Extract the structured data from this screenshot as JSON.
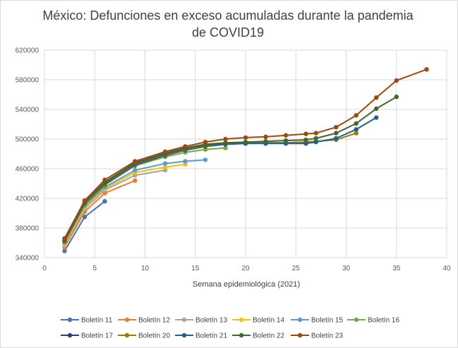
{
  "chart_data": {
    "type": "line",
    "title_line1": "México: Defunciones en exceso acumuladas durante la pandemia",
    "title_line2": "de COVID19",
    "xlabel": "Semana epidemiológica (2021)",
    "ylabel": "",
    "xlim": [
      0,
      40
    ],
    "ylim": [
      340000,
      620000
    ],
    "xticks": [
      0,
      5,
      10,
      15,
      20,
      25,
      30,
      35,
      40
    ],
    "yticks": [
      340000,
      380000,
      420000,
      460000,
      500000,
      540000,
      580000,
      620000
    ],
    "grid": true,
    "legend_position": "bottom",
    "series": [
      {
        "name": "Boletín 11",
        "color": "#4472C4",
        "x": [
          2,
          4,
          6
        ],
        "y": [
          349000,
          395000,
          416000
        ]
      },
      {
        "name": "Boletín 12",
        "color": "#ED7D31",
        "x": [
          2,
          4,
          6,
          9
        ],
        "y": [
          354000,
          402000,
          427000,
          444000
        ]
      },
      {
        "name": "Boletín 13",
        "color": "#A5A5A5",
        "x": [
          2,
          4,
          6,
          9,
          12
        ],
        "y": [
          357000,
          406000,
          431000,
          451000,
          458000
        ]
      },
      {
        "name": "Boletín 14",
        "color": "#FFC000",
        "x": [
          2,
          4,
          6,
          9,
          12,
          14
        ],
        "y": [
          358000,
          408000,
          433000,
          455000,
          462000,
          466000
        ]
      },
      {
        "name": "Boletín 15",
        "color": "#5B9BD5",
        "x": [
          2,
          4,
          6,
          9,
          12,
          14,
          16
        ],
        "y": [
          360000,
          410000,
          435000,
          458000,
          467000,
          470000,
          472000
        ]
      },
      {
        "name": "Boletín 16",
        "color": "#70AD47",
        "x": [
          2,
          4,
          6,
          9,
          12,
          14,
          16,
          18
        ],
        "y": [
          361000,
          412000,
          438000,
          464000,
          476000,
          482000,
          486000,
          488000
        ]
      },
      {
        "name": "Boletín 17",
        "color": "#264478",
        "x": [
          2,
          4,
          6,
          9,
          12,
          14,
          16,
          18,
          20,
          22,
          24,
          26,
          27
        ],
        "y": [
          362000,
          413000,
          439000,
          465000,
          478000,
          485000,
          490000,
          493000,
          494000,
          495000,
          495000,
          496000,
          497000
        ]
      },
      {
        "name": "Boletín 20",
        "color": "#9E7A00",
        "x": [
          2,
          4,
          6,
          9,
          12,
          14,
          16,
          18,
          20,
          22,
          24,
          26,
          27,
          29,
          31
        ],
        "y": [
          362000,
          413000,
          440000,
          466000,
          479000,
          486000,
          491000,
          494000,
          495000,
          495000,
          495000,
          496000,
          497000,
          499000,
          508000
        ]
      },
      {
        "name": "Boletín 21",
        "color": "#255E91",
        "x": [
          2,
          4,
          6,
          9,
          12,
          14,
          16,
          18,
          20,
          22,
          24,
          26,
          27,
          29,
          31,
          33
        ],
        "y": [
          363000,
          414000,
          441000,
          467000,
          480000,
          487000,
          492000,
          494000,
          494000,
          494000,
          494000,
          494000,
          496000,
          501000,
          513000,
          529000
        ]
      },
      {
        "name": "Boletín 22",
        "color": "#43682B",
        "x": [
          2,
          4,
          6,
          9,
          12,
          14,
          16,
          18,
          20,
          22,
          24,
          26,
          27,
          29,
          31,
          33,
          35
        ],
        "y": [
          364000,
          415000,
          442000,
          468000,
          481000,
          488000,
          493000,
          495000,
          496000,
          497000,
          498000,
          499000,
          501000,
          508000,
          521000,
          541000,
          557000
        ]
      },
      {
        "name": "Boletín 23",
        "color": "#9E480E",
        "x": [
          2,
          4,
          6,
          9,
          12,
          14,
          16,
          18,
          20,
          22,
          24,
          26,
          27,
          29,
          31,
          33,
          35,
          38
        ],
        "y": [
          366000,
          417000,
          445000,
          470000,
          483000,
          490000,
          496000,
          500000,
          502000,
          503000,
          505000,
          507000,
          508000,
          516000,
          532000,
          556000,
          579000,
          594000
        ]
      }
    ]
  }
}
